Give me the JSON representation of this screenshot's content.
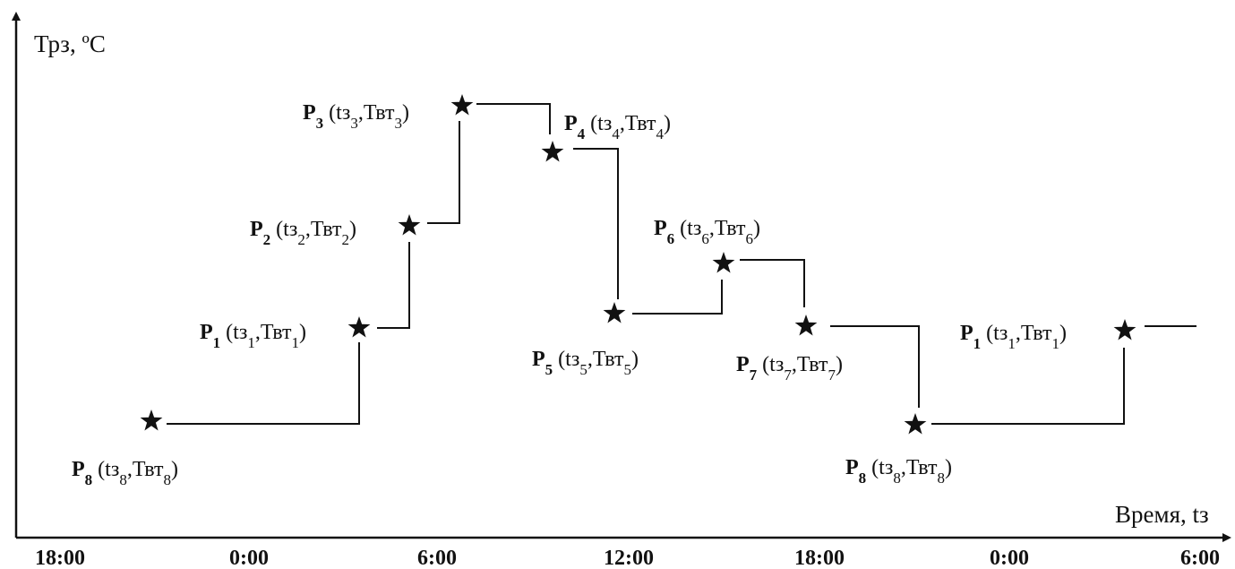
{
  "axes": {
    "y_label": "Трз, ºС",
    "x_label": "Время, tз",
    "x_ticks": [
      "18:00",
      "0:00",
      "6:00",
      "12:00",
      "18:00",
      "0:00",
      "6:00"
    ]
  },
  "points": [
    {
      "id": "P8a",
      "name": "P",
      "sub": "8",
      "args": [
        "tз",
        "8",
        "Твт",
        "8"
      ]
    },
    {
      "id": "P1a",
      "name": "P",
      "sub": "1",
      "args": [
        "tз",
        "1",
        "Твт",
        "1"
      ]
    },
    {
      "id": "P2",
      "name": "P",
      "sub": "2",
      "args": [
        "tз",
        "2",
        "Твт",
        "2"
      ]
    },
    {
      "id": "P3",
      "name": "P",
      "sub": "3",
      "args": [
        "tз",
        "3",
        "Твт",
        "3"
      ]
    },
    {
      "id": "P4",
      "name": "P",
      "sub": "4",
      "args": [
        "tз",
        "4",
        "Твт",
        "4"
      ]
    },
    {
      "id": "P5",
      "name": "P",
      "sub": "5",
      "args": [
        "tз",
        "5",
        "Твт",
        "5"
      ]
    },
    {
      "id": "P6",
      "name": "P",
      "sub": "6",
      "args": [
        "tз",
        "6",
        "Твт",
        "6"
      ]
    },
    {
      "id": "P7",
      "name": "P",
      "sub": "7",
      "args": [
        "tз",
        "7",
        "Твт",
        "7"
      ]
    },
    {
      "id": "P8b",
      "name": "P",
      "sub": "8",
      "args": [
        "tз",
        "8",
        "Твт",
        "8"
      ]
    },
    {
      "id": "P1b",
      "name": "P",
      "sub": "1",
      "args": [
        "tз",
        "1",
        "Твт",
        "1"
      ]
    }
  ],
  "colors": {
    "ink": "#111111",
    "background": "#ffffff"
  },
  "marker_icon": "star-icon"
}
